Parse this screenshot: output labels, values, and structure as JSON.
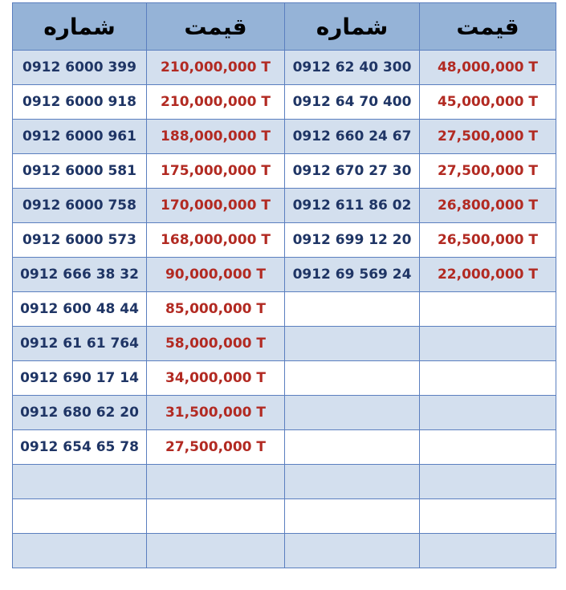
{
  "headers": [
    "شماره",
    "قیمت",
    "شماره",
    "قیمت"
  ],
  "rows": [
    [
      "0912 6000 399",
      "210,000,000 T",
      "0912 62 40 300",
      "48,000,000 T"
    ],
    [
      "0912 6000 918",
      "210,000,000 T",
      "0912 64 70 400",
      "45,000,000 T"
    ],
    [
      "0912 6000 961",
      "188,000,000 T",
      "0912 660 24 67",
      "27,500,000 T"
    ],
    [
      "0912 6000 581",
      "175,000,000 T",
      "0912 670 27 30",
      "27,500,000 T"
    ],
    [
      "0912 6000 758",
      "170,000,000 T",
      "0912 611 86 02",
      "26,800,000 T"
    ],
    [
      "0912 6000 573",
      "168,000,000 T",
      "0912 699 12 20",
      "26,500,000 T"
    ],
    [
      "0912 666 38 32",
      "90,000,000 T",
      "0912 69 569 24",
      "22,000,000 T"
    ],
    [
      "0912 600 48 44",
      "85,000,000 T",
      "",
      ""
    ],
    [
      "0912 61 61 764",
      "58,000,000 T",
      "",
      ""
    ],
    [
      "0912 690 17 14",
      "34,000,000 T",
      "",
      ""
    ],
    [
      "0912 680 62 20",
      "31,500,000 T",
      "",
      ""
    ],
    [
      "0912 654 65 78",
      "27,500,000 T",
      "",
      ""
    ],
    [
      "",
      "",
      "",
      ""
    ],
    [
      "",
      "",
      "",
      ""
    ],
    [
      "",
      "",
      "",
      ""
    ]
  ],
  "colors": {
    "header_bg": "#95b3d7",
    "alt_row_bg": "#d3dfee",
    "border": "#5b7fbf",
    "number_text": "#1f3565",
    "price_text": "#b22a22"
  }
}
